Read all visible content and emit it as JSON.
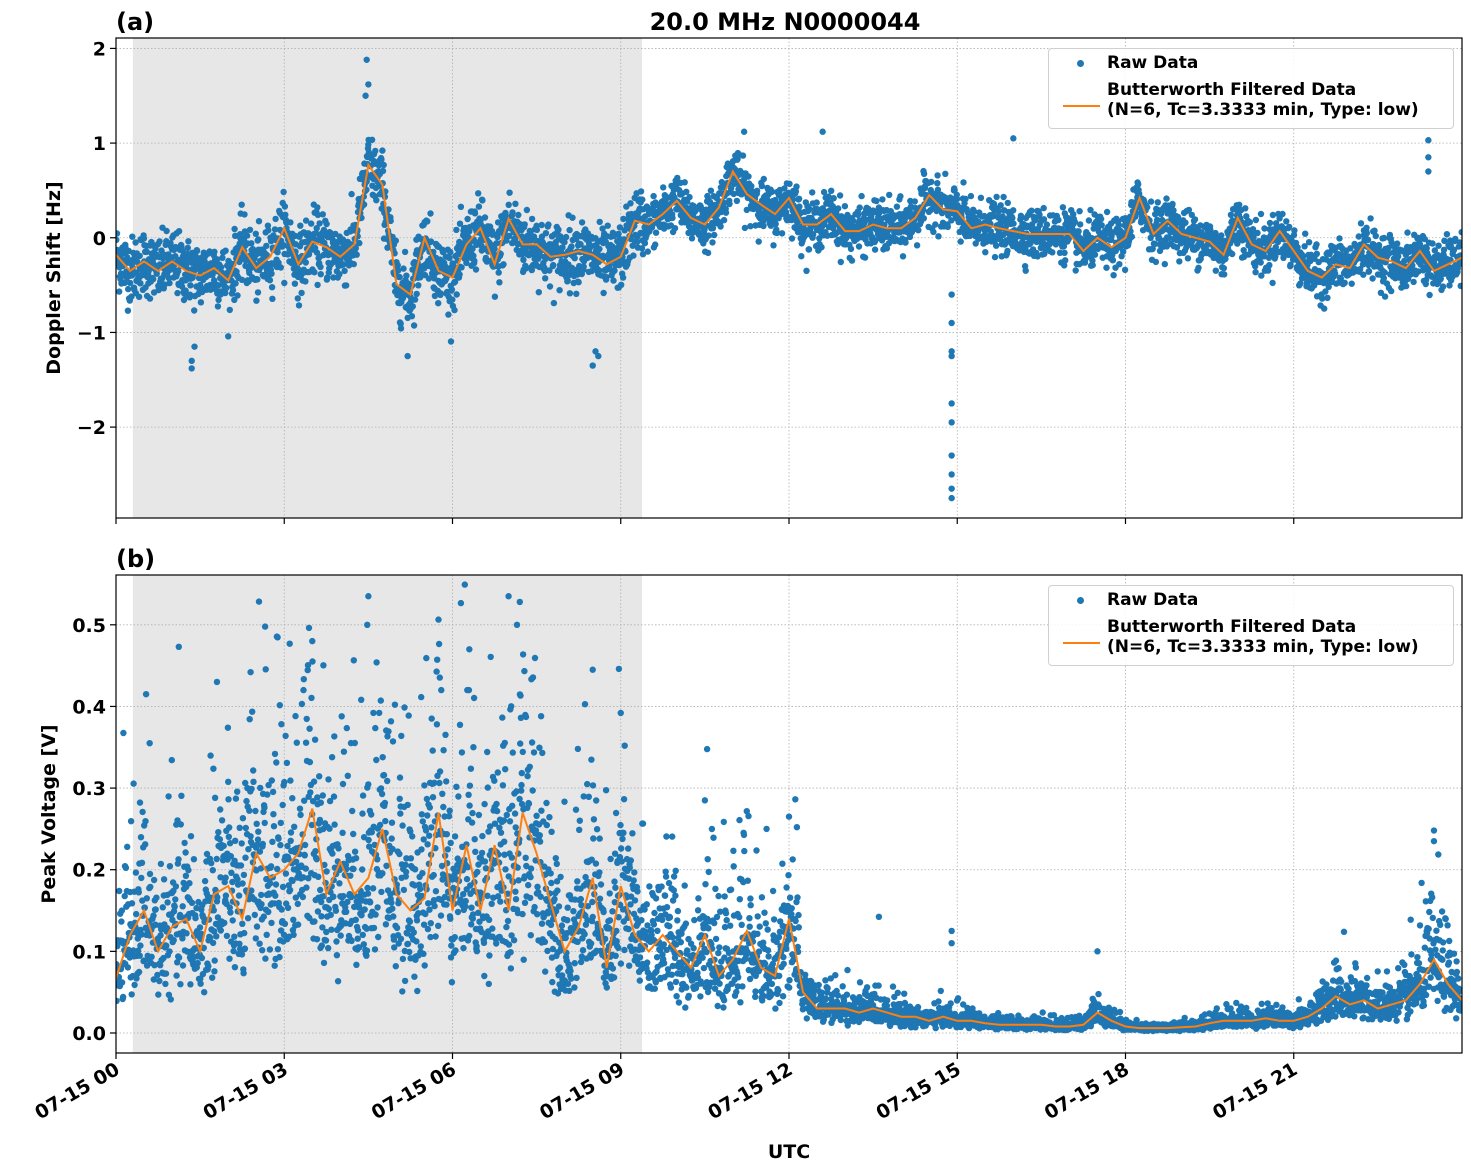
{
  "title": "20.0 MHz N0000044",
  "colors": {
    "raw": "#1f77b4",
    "filtered": "#ff7f0e",
    "shade": "#e7e7e7",
    "grid": "#b0b0b0"
  },
  "legend": {
    "raw_label": "Raw Data",
    "filtered_label_1": "Butterworth Filtered Data",
    "filtered_label_2": "(N=6, Tc=3.3333 min, Type: low)",
    "placement": "top-right"
  },
  "xaxis": {
    "label": "UTC",
    "range_hours": [
      0,
      24
    ],
    "ticks": [
      0,
      3,
      6,
      9,
      12,
      15,
      18,
      21
    ],
    "tick_labels": [
      "07-15 00",
      "07-15 03",
      "07-15 06",
      "07-15 09",
      "07-15 12",
      "07-15 15",
      "07-15 18",
      "07-15 21"
    ]
  },
  "chart_data": [
    {
      "panel_label": "(a)",
      "type": "scatter+line",
      "ylabel": "Doppler Shift [Hz]",
      "ylim": [
        -2.96,
        2.11
      ],
      "yticks": [
        -2,
        -1,
        0,
        1,
        2
      ],
      "ytick_labels": [
        "−2",
        "−1",
        "0",
        "1",
        "2"
      ],
      "grid": true,
      "shaded_interval_hours": [
        0.3,
        9.38
      ],
      "filtered": {
        "name": "Butterworth Filtered Data",
        "x_hours_step": 0.25,
        "values": [
          -0.18,
          -0.35,
          -0.25,
          -0.35,
          -0.25,
          -0.35,
          -0.4,
          -0.32,
          -0.45,
          -0.1,
          -0.32,
          -0.2,
          0.1,
          -0.28,
          -0.04,
          -0.1,
          -0.2,
          -0.07,
          0.77,
          0.56,
          -0.49,
          -0.6,
          0,
          -0.35,
          -0.42,
          -0.07,
          0.1,
          -0.28,
          0.2,
          -0.07,
          -0.07,
          -0.2,
          -0.18,
          -0.14,
          -0.18,
          -0.28,
          -0.2,
          0.18,
          0.14,
          0.25,
          0.39,
          0.21,
          0.14,
          0.32,
          0.7,
          0.46,
          0.35,
          0.25,
          0.42,
          0.14,
          0.14,
          0.25,
          0.07,
          0.07,
          0.14,
          0.1,
          0.1,
          0.21,
          0.45,
          0.3,
          0.28,
          0.1,
          0.14,
          0.1,
          0.07,
          0.04,
          0.04,
          0.04,
          0.04,
          -0.14,
          0,
          -0.1,
          0,
          0.42,
          0.04,
          0.18,
          0.04,
          0,
          -0.04,
          -0.18,
          0.21,
          -0.07,
          -0.14,
          0.07,
          -0.14,
          -0.35,
          -0.42,
          -0.28,
          -0.32,
          -0.07,
          -0.21,
          -0.25,
          -0.32,
          -0.14,
          -0.35,
          -0.28,
          -0.21
        ]
      },
      "raw_outliers": [
        [
          4.47,
          1.88
        ],
        [
          4.5,
          1.62
        ],
        [
          4.45,
          1.5
        ],
        [
          11.2,
          1.12
        ],
        [
          12.6,
          1.12
        ],
        [
          16.0,
          1.05
        ],
        [
          23.4,
          1.03
        ],
        [
          23.4,
          0.85
        ],
        [
          23.4,
          0.7
        ],
        [
          14.9,
          -2.75
        ],
        [
          14.9,
          -2.65
        ],
        [
          14.9,
          -2.5
        ],
        [
          14.9,
          -2.3
        ],
        [
          14.9,
          -1.95
        ],
        [
          14.9,
          -1.75
        ],
        [
          14.9,
          -1.25
        ],
        [
          14.9,
          -1.2
        ],
        [
          14.9,
          -0.9
        ],
        [
          14.9,
          -0.6
        ],
        [
          8.5,
          -1.35
        ],
        [
          8.55,
          -1.2
        ],
        [
          8.6,
          -1.25
        ],
        [
          1.35,
          -1.38
        ],
        [
          1.35,
          -1.3
        ],
        [
          5.2,
          -1.25
        ],
        [
          1.4,
          -1.15
        ]
      ]
    },
    {
      "panel_label": "(b)",
      "type": "scatter+line",
      "ylabel": "Peak Voltage [V]",
      "ylim": [
        -0.0245,
        0.561
      ],
      "yticks": [
        0.0,
        0.1,
        0.2,
        0.3,
        0.4,
        0.5
      ],
      "ytick_labels": [
        "0.0",
        "0.1",
        "0.2",
        "0.3",
        "0.4",
        "0.5"
      ],
      "grid": true,
      "shaded_interval_hours": [
        0.3,
        9.38
      ],
      "filtered": {
        "name": "Butterworth Filtered Data",
        "x_hours_step": 0.25,
        "values": [
          0.067,
          0.12,
          0.15,
          0.1,
          0.13,
          0.14,
          0.1,
          0.17,
          0.18,
          0.14,
          0.22,
          0.19,
          0.2,
          0.22,
          0.275,
          0.17,
          0.21,
          0.17,
          0.19,
          0.25,
          0.17,
          0.15,
          0.165,
          0.27,
          0.15,
          0.23,
          0.15,
          0.23,
          0.15,
          0.27,
          0.22,
          0.16,
          0.1,
          0.13,
          0.19,
          0.08,
          0.18,
          0.12,
          0.1,
          0.12,
          0.1,
          0.08,
          0.12,
          0.07,
          0.09,
          0.125,
          0.08,
          0.07,
          0.14,
          0.05,
          0.03,
          0.03,
          0.03,
          0.025,
          0.03,
          0.025,
          0.02,
          0.02,
          0.015,
          0.02,
          0.015,
          0.015,
          0.012,
          0.01,
          0.01,
          0.01,
          0.01,
          0.008,
          0.008,
          0.01,
          0.025,
          0.015,
          0.008,
          0.006,
          0.006,
          0.006,
          0.007,
          0.008,
          0.012,
          0.015,
          0.015,
          0.015,
          0.018,
          0.015,
          0.015,
          0.02,
          0.03,
          0.045,
          0.035,
          0.04,
          0.03,
          0.035,
          0.04,
          0.06,
          0.09,
          0.06,
          0.04
        ]
      },
      "raw_outliers": [
        [
          4.5,
          0.535
        ],
        [
          4.48,
          0.5
        ],
        [
          7.0,
          0.535
        ],
        [
          7.2,
          0.528
        ],
        [
          7.15,
          0.5
        ],
        [
          3.5,
          0.48
        ],
        [
          6.3,
          0.47
        ],
        [
          8.5,
          0.445
        ],
        [
          2.4,
          0.442
        ],
        [
          1.8,
          0.43
        ],
        [
          5.8,
          0.42
        ],
        [
          9.0,
          0.392
        ],
        [
          0.6,
          0.355
        ],
        [
          0.2,
          0.228
        ],
        [
          10.5,
          0.285
        ],
        [
          12.0,
          0.265
        ],
        [
          11.6,
          0.25
        ],
        [
          14.9,
          0.125
        ],
        [
          14.9,
          0.11
        ],
        [
          17.5,
          0.1
        ],
        [
          23.5,
          0.248
        ],
        [
          23.5,
          0.235
        ]
      ]
    }
  ]
}
